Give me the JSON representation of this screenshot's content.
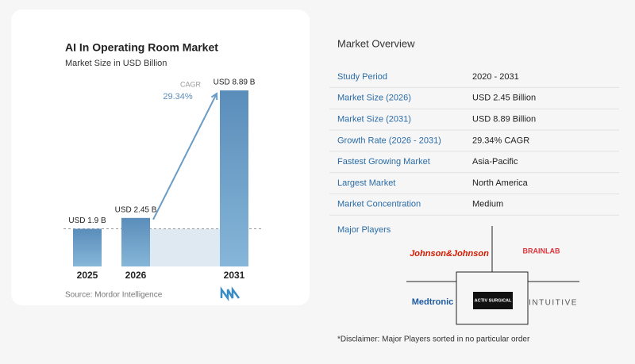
{
  "chart_data": {
    "type": "bar",
    "title": "AI In Operating Room Market",
    "subtitle": "Market Size in USD Billion",
    "categories": [
      "2025",
      "2026",
      "2031"
    ],
    "values": [
      1.9,
      2.45,
      8.89
    ],
    "value_labels": [
      "USD 1.9 B",
      "USD 2.45 B",
      "USD 8.89 B"
    ],
    "annotation": {
      "label": "CAGR",
      "value": "29.34%"
    },
    "color": "#6a9cc6",
    "source": "Source: Mordor Intelligence"
  },
  "overview": {
    "title": "Market Overview",
    "rows": [
      [
        "Study Period",
        "2020 - 2031"
      ],
      [
        "Market Size (2026)",
        "USD 2.45 Billion"
      ],
      [
        "Market Size (2031)",
        "USD 8.89 Billion"
      ],
      [
        "Growth Rate (2026 - 2031)",
        "29.34% CAGR"
      ],
      [
        "Fastest Growing Market",
        "Asia-Pacific"
      ],
      [
        "Largest Market",
        "North America"
      ],
      [
        "Market Concentration",
        "Medium"
      ]
    ]
  },
  "major_players": {
    "title": "Major Players",
    "players": [
      "Johnson&Johnson",
      "BRAINLAB",
      "Medtronic",
      "ACTIV SURGICAL",
      "INTUITIVE"
    ]
  },
  "disclaimer": "*Disclaimer: Major Players sorted in no particular order"
}
